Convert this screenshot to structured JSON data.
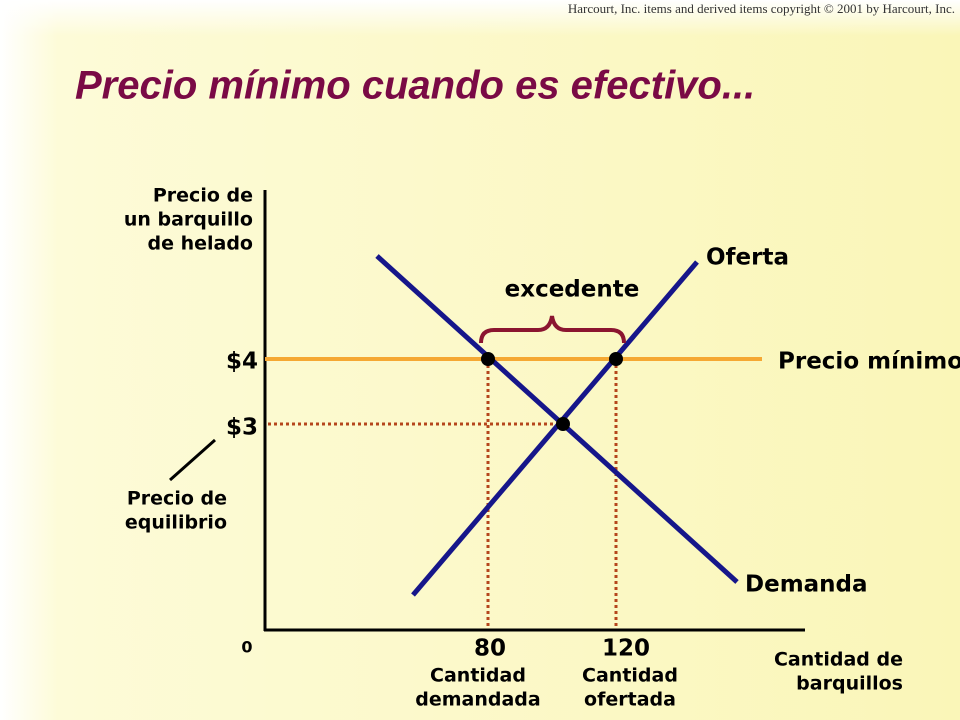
{
  "copyright": "Harcourt, Inc. items and derived items copyright © 2001 by Harcourt, Inc.",
  "title": "Precio mínimo cuando es efectivo...",
  "axes": {
    "y_label": [
      "Precio de",
      "un barquillo",
      "de helado"
    ],
    "x_label": [
      "Cantidad de",
      "barquillos"
    ],
    "origin": "0"
  },
  "curves": {
    "supply": "Oferta",
    "demand": "Demanda",
    "price_floor": "Precio mínimo"
  },
  "prices": [
    "$4",
    "$3"
  ],
  "quantities": [
    {
      "value": "80",
      "label": [
        "Cantidad",
        "demandada"
      ]
    },
    {
      "value": "120",
      "label": [
        "Cantidad",
        "ofertada"
      ]
    }
  ],
  "surplus": "excedente",
  "equilibrium_label": [
    "Precio de",
    "equilibrio"
  ]
}
